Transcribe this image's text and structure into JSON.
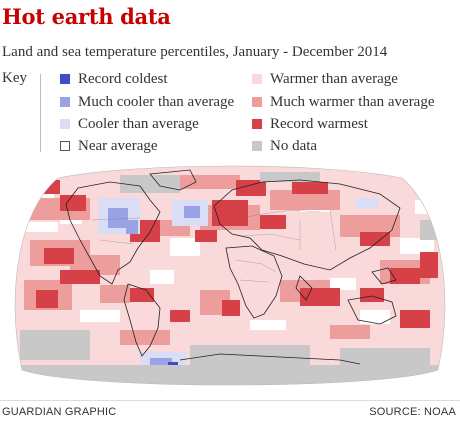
{
  "header": {
    "title": "Hot earth data",
    "subtitle": "Land and sea temperature percentiles, January - December 2014"
  },
  "legend": {
    "label": "Key",
    "items": [
      {
        "label": "Record coldest",
        "color": "#3a50c4"
      },
      {
        "label": "Much cooler than average",
        "color": "#9aa3e6"
      },
      {
        "label": "Cooler than average",
        "color": "#d9ddf6"
      },
      {
        "label": "Near average",
        "color": "#ffffff"
      },
      {
        "label": "Warmer than average",
        "color": "#f9d9d9"
      },
      {
        "label": "Much warmer than average",
        "color": "#ee9d9d"
      },
      {
        "label": "Record warmest",
        "color": "#d64047"
      },
      {
        "label": "No data",
        "color": "#c8c8c8"
      }
    ]
  },
  "footer": {
    "credit": "GUARDIAN GRAPHIC",
    "source": "SOURCE: NOAA"
  }
}
